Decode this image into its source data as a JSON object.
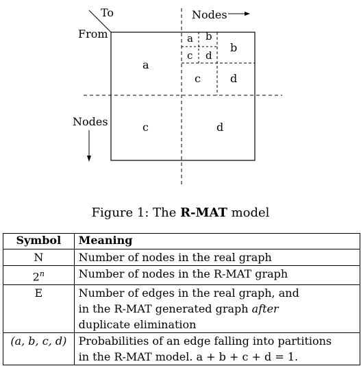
{
  "figure": {
    "labels": {
      "to": "To",
      "from": "From",
      "nodes_top": "Nodes",
      "nodes_left": "Nodes"
    },
    "quadrants": {
      "a": "a",
      "b": "b",
      "c": "c",
      "d": "d",
      "b_a": "a",
      "b_b": "b",
      "b_c": "c",
      "b_d": "d",
      "bb_a": "a",
      "bb_b": "b",
      "bb_c": "c",
      "bb_d": "d"
    }
  },
  "caption": {
    "prefix": "Figure 1:  The ",
    "bold": "R-MAT",
    "suffix": " model"
  },
  "table": {
    "header": {
      "symbol": "Symbol",
      "meaning": "Meaning"
    },
    "rows": [
      {
        "symbol": "N",
        "meaning": "Number of nodes in the real graph"
      },
      {
        "symbol_base": "2",
        "symbol_sup": "n",
        "meaning": "Number of nodes in the R-MAT graph"
      },
      {
        "symbol": "E",
        "meaning_l1": "Number of edges in the real graph, and",
        "meaning_l2a": "in the R-MAT generated graph ",
        "meaning_l2b": "after",
        "meaning_l3": "duplicate elimination"
      },
      {
        "symbol": "(a, b, c, d)",
        "meaning_l1": "Probabilities of an edge falling into partitions",
        "meaning_l2": "in the R-MAT model.  a + b + c + d = 1."
      }
    ]
  }
}
